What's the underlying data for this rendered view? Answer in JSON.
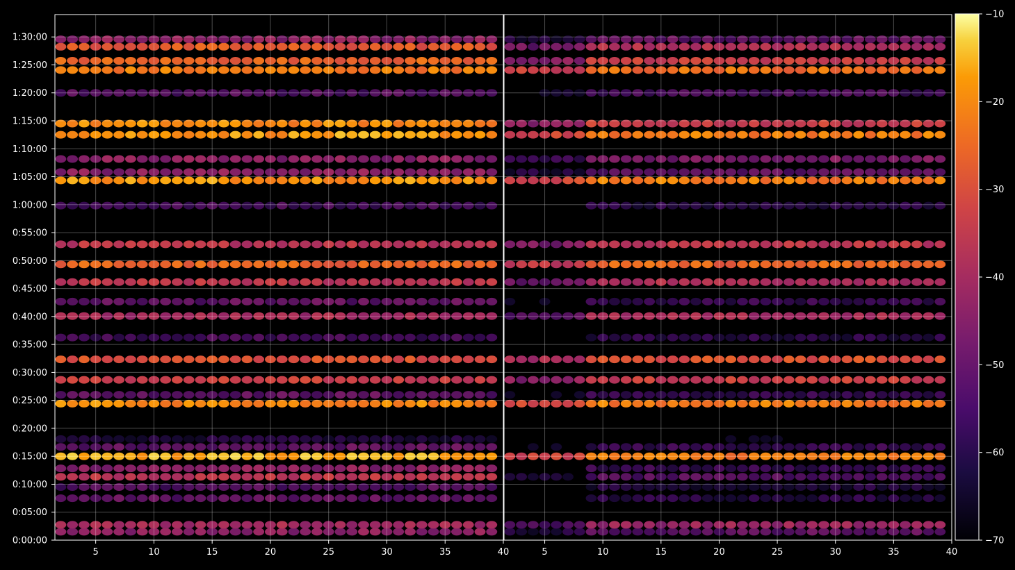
{
  "chart_data": {
    "type": "heatmap",
    "colormap": "inferno",
    "background": "#000000",
    "panels": [
      {
        "name": "",
        "xlim": [
          1.5,
          40
        ],
        "ylim_seconds": [
          0,
          5640
        ],
        "xticks": [
          "5",
          "10",
          "15",
          "20",
          "25",
          "30",
          "35",
          "40"
        ]
      },
      {
        "name": "",
        "xlim": [
          1.5,
          40
        ],
        "ylim_seconds": [
          0,
          5640
        ],
        "xticks": [
          "5",
          "10",
          "15",
          "20",
          "25",
          "30",
          "35",
          "40"
        ]
      }
    ],
    "yticks": [
      "0:00:00",
      "0:05:00",
      "0:10:00",
      "0:15:00",
      "0:20:00",
      "0:25:00",
      "0:30:00",
      "0:35:00",
      "0:40:00",
      "0:45:00",
      "0:50:00",
      "0:55:00",
      "1:00:00",
      "1:05:00",
      "1:10:00",
      "1:15:00",
      "1:20:00",
      "1:25:00",
      "1:30:00"
    ],
    "colorbar": {
      "range": [
        -70,
        -10
      ],
      "ticks": [
        "−10",
        "−20",
        "−30",
        "−40",
        "−50",
        "−60",
        "−70"
      ]
    },
    "bands": [
      {
        "t": 90,
        "p1": -44,
        "p2": -50
      },
      {
        "t": 165,
        "p1": -40,
        "p2": -42
      },
      {
        "t": 450,
        "p1": -50,
        "p2": -58
      },
      {
        "t": 570,
        "p1": -52,
        "p2": -60
      },
      {
        "t": 680,
        "p1": -36,
        "p2": -52
      },
      {
        "t": 770,
        "p1": -44,
        "p2": -56
      },
      {
        "t": 900,
        "p1": -16,
        "p2": -22
      },
      {
        "t": 1000,
        "p1": -50,
        "p2": -56
      },
      {
        "t": 1085,
        "p1": -60,
        "p2": -66
      },
      {
        "t": 1465,
        "p1": -20,
        "p2": -22
      },
      {
        "t": 1560,
        "p1": -50,
        "p2": -56
      },
      {
        "t": 1720,
        "p1": -34,
        "p2": -34
      },
      {
        "t": 1940,
        "p1": -30,
        "p2": -30
      },
      {
        "t": 2175,
        "p1": -54,
        "p2": -58
      },
      {
        "t": 2405,
        "p1": -40,
        "p2": -40
      },
      {
        "t": 2560,
        "p1": -50,
        "p2": -56
      },
      {
        "t": 2770,
        "p1": -36,
        "p2": -38
      },
      {
        "t": 2960,
        "p1": -26,
        "p2": -26
      },
      {
        "t": 3175,
        "p1": -36,
        "p2": -36
      },
      {
        "t": 3590,
        "p1": -54,
        "p2": -58
      },
      {
        "t": 3860,
        "p1": -18,
        "p2": -22
      },
      {
        "t": 3950,
        "p1": -44,
        "p2": -50
      },
      {
        "t": 4090,
        "p1": -44,
        "p2": -46
      },
      {
        "t": 4350,
        "p1": -18,
        "p2": -22
      },
      {
        "t": 4470,
        "p1": -20,
        "p2": -34
      },
      {
        "t": 4800,
        "p1": -52,
        "p2": -54
      },
      {
        "t": 5045,
        "p1": -22,
        "p2": -24
      },
      {
        "t": 5145,
        "p1": -26,
        "p2": -34
      },
      {
        "t": 5295,
        "p1": -28,
        "p2": -38
      },
      {
        "t": 5375,
        "p1": -44,
        "p2": -50
      }
    ]
  }
}
